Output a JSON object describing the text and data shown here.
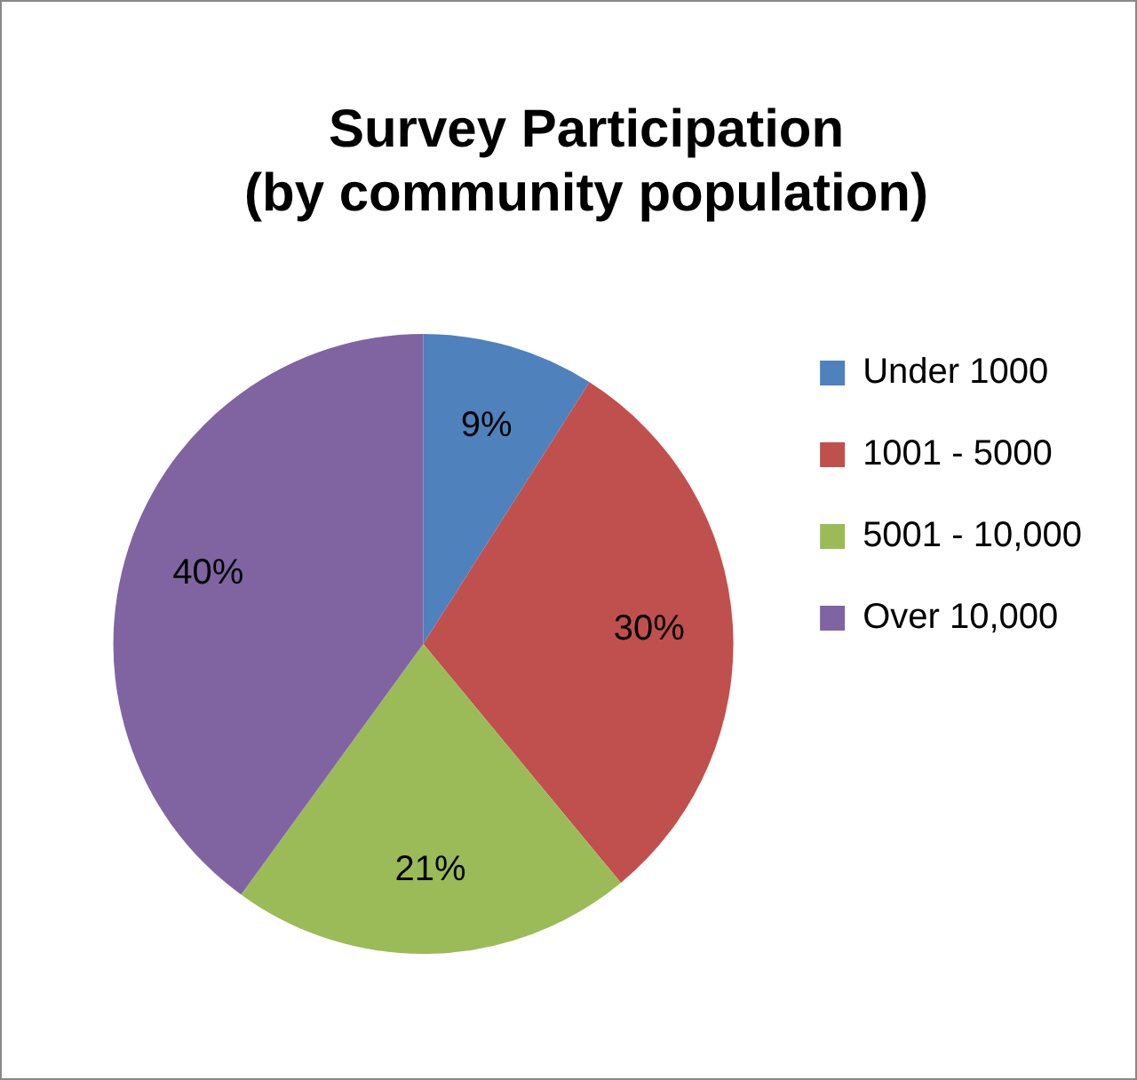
{
  "chart_data": {
    "type": "pie",
    "title": "Survey Participation\n(by community population)",
    "categories": [
      "Under 1000",
      "1001 - 5000",
      "5001 - 10,000",
      "Over 10,000"
    ],
    "values": [
      9,
      30,
      21,
      40
    ],
    "value_labels": [
      "9%",
      "30%",
      "21%",
      "40%"
    ],
    "colors": [
      "#4f81bd",
      "#c0504d",
      "#9bbb59",
      "#8064a2"
    ],
    "legend": "right"
  }
}
